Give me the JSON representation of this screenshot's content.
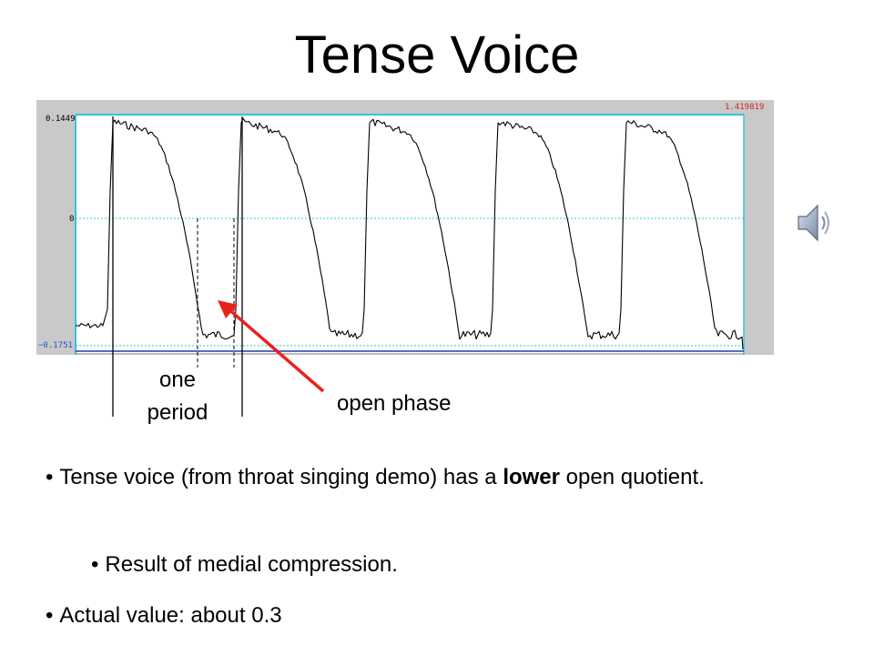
{
  "slide": {
    "title": "Tense Voice"
  },
  "waveform": {
    "y_max_label": "0.1449",
    "y_zero_label": "0",
    "y_min_label": "−0.1751",
    "cursor_time_label": "1.419819",
    "colors": {
      "panel_background": "#c9c9c9",
      "plot_background": "#ffffff",
      "frame": "#35c3d8",
      "zero_line": "#35c3d8",
      "waveform": "#000000",
      "arrow": "#e8231c",
      "cursor_time": "#d8221f",
      "min_label": "#2a4fd0"
    }
  },
  "speaker": {
    "icon": "speaker-icon"
  },
  "annotations": {
    "one_period_line1": "one",
    "one_period_line2": "period",
    "open_phase": "open phase"
  },
  "bullets": {
    "b1_before": "Tense voice (from throat singing demo) has a ",
    "b1_bold": "lower",
    "b1_after": " open quotient.",
    "b2": "Result of medial compression.",
    "b3": "Actual value: about 0.3"
  }
}
